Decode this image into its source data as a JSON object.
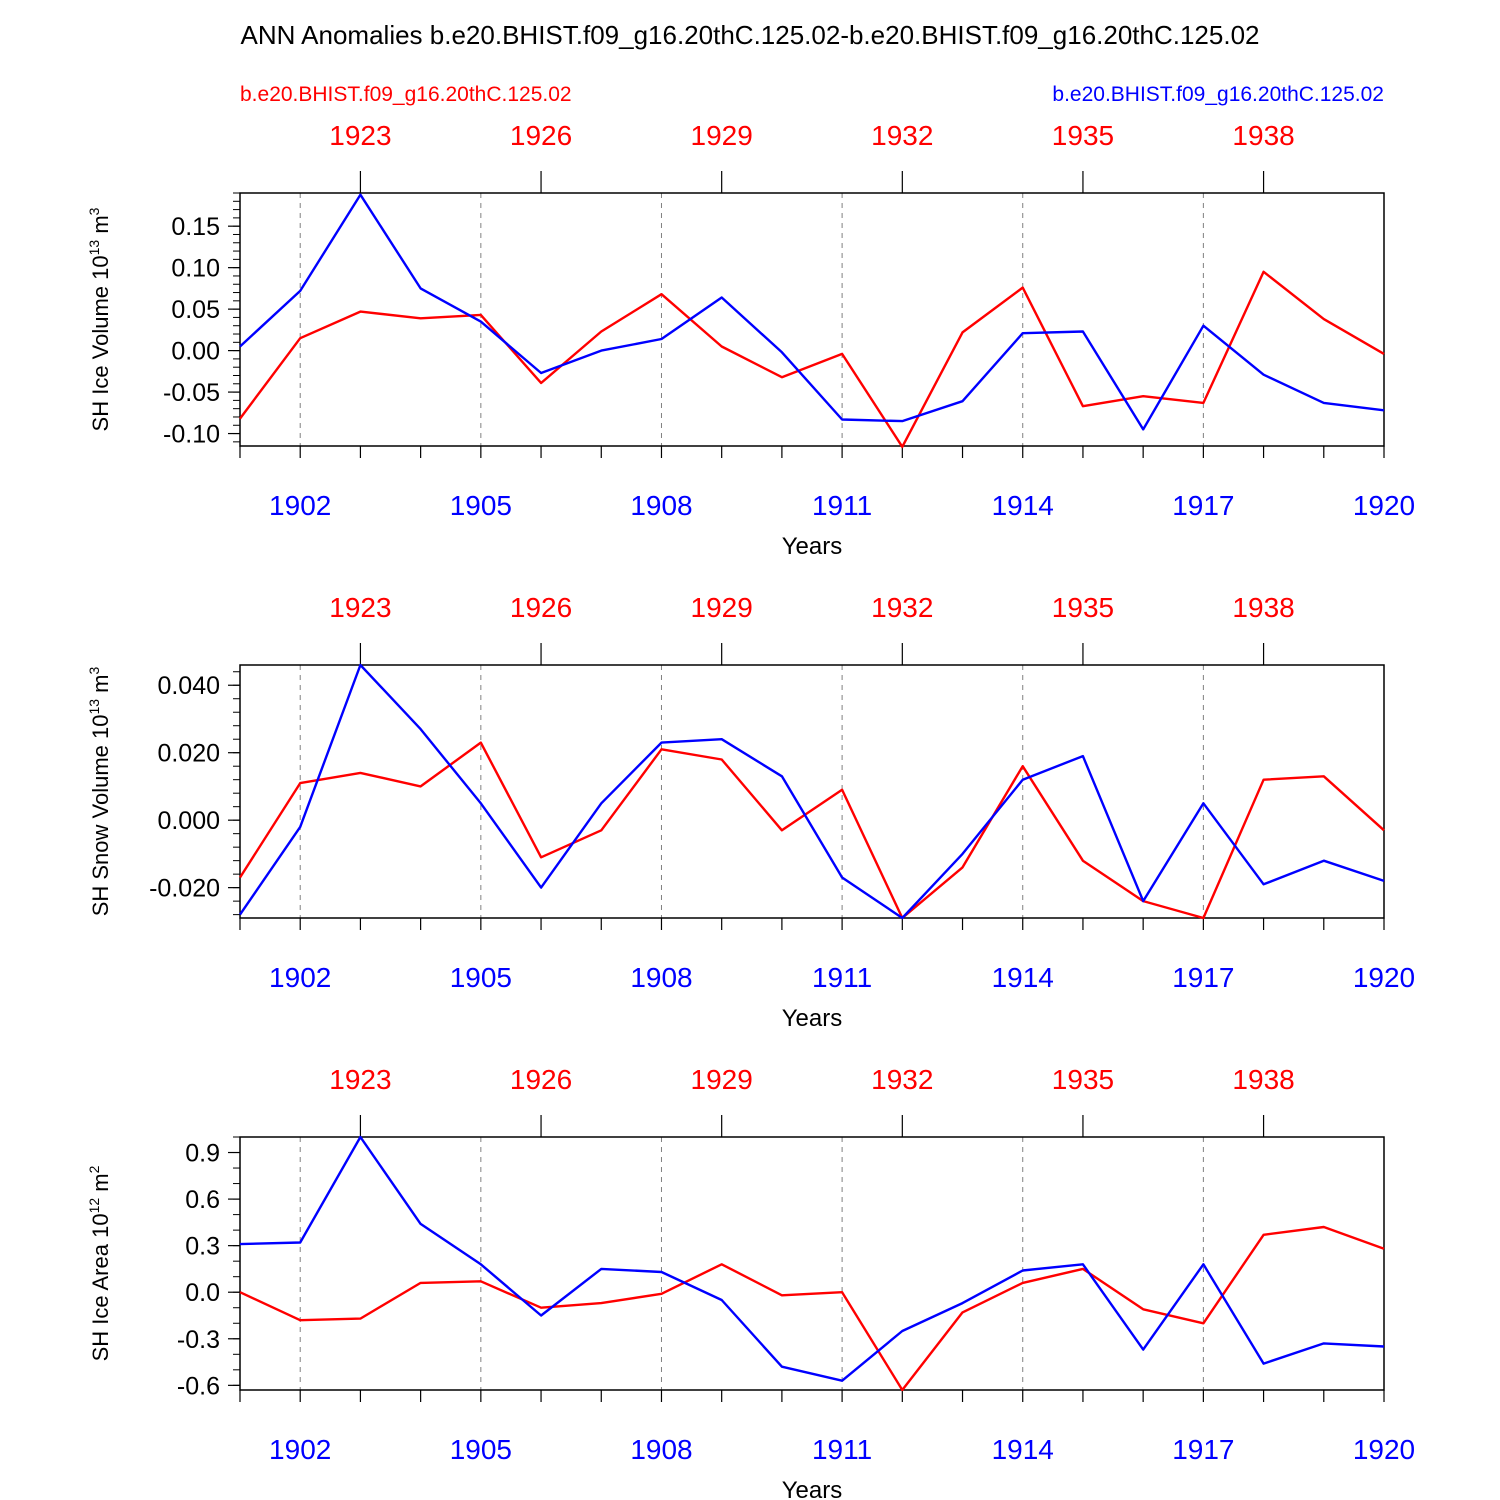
{
  "title": "ANN Anomalies b.e20.BHIST.f09_g16.20thC.125.02-b.e20.BHIST.f09_g16.20thC.125.02",
  "legend": {
    "left_label": "b.e20.BHIST.f09_g16.20thC.125.02",
    "right_label": "b.e20.BHIST.f09_g16.20thC.125.02"
  },
  "colors": {
    "red_series": "#ff0000",
    "blue_series": "#0000ff",
    "axes": "#000000",
    "grid": "#808080"
  },
  "chart_data": [
    {
      "type": "line",
      "ylabel": "SH Ice Volume 10",
      "ylabel_exp": "13",
      "ylabel_unit": " m",
      "ylabel_unit_exp": "3",
      "xlabel": "Years",
      "ylim": [
        -0.115,
        0.19
      ],
      "yticks": [
        -0.1,
        -0.05,
        0.0,
        0.05,
        0.1,
        0.15
      ],
      "ytick_labels": [
        "-0.10",
        "-0.05",
        "0.00",
        "0.05",
        "0.10",
        "0.15"
      ],
      "yminor_step": 0.01,
      "x_bottom": [
        1901,
        1902,
        1903,
        1904,
        1905,
        1906,
        1907,
        1908,
        1909,
        1910,
        1911,
        1912,
        1913,
        1914,
        1915,
        1916,
        1917,
        1918,
        1919,
        1920
      ],
      "bottom_tick_labels": [
        "1902",
        "1905",
        "1908",
        "1911",
        "1914",
        "1917",
        "1920"
      ],
      "top_tick_labels": [
        "1923",
        "1926",
        "1929",
        "1932",
        "1935",
        "1938"
      ],
      "series": [
        {
          "color": "red",
          "values": [
            -0.082,
            0.015,
            0.047,
            0.039,
            0.043,
            -0.039,
            0.023,
            0.068,
            0.005,
            -0.032,
            -0.004,
            -0.116,
            0.022,
            0.076,
            -0.067,
            -0.055,
            -0.063,
            0.095,
            0.038,
            -0.004
          ]
        },
        {
          "color": "blue",
          "values": [
            0.005,
            0.072,
            0.188,
            0.075,
            0.035,
            -0.027,
            0.0,
            0.014,
            0.064,
            -0.002,
            -0.083,
            -0.085,
            -0.061,
            0.021,
            0.023,
            -0.095,
            0.03,
            -0.029,
            -0.063,
            -0.072
          ]
        }
      ]
    },
    {
      "type": "line",
      "ylabel": "SH Snow Volume 10",
      "ylabel_exp": "13",
      "ylabel_unit": " m",
      "ylabel_unit_exp": "3",
      "xlabel": "Years",
      "ylim": [
        -0.029,
        0.046
      ],
      "yticks": [
        -0.02,
        0.0,
        0.02,
        0.04
      ],
      "ytick_labels": [
        "-0.020",
        "0.000",
        "0.020",
        "0.040"
      ],
      "yminor_step": 0.004,
      "x_bottom": [
        1901,
        1902,
        1903,
        1904,
        1905,
        1906,
        1907,
        1908,
        1909,
        1910,
        1911,
        1912,
        1913,
        1914,
        1915,
        1916,
        1917,
        1918,
        1919,
        1920
      ],
      "bottom_tick_labels": [
        "1902",
        "1905",
        "1908",
        "1911",
        "1914",
        "1917",
        "1920"
      ],
      "top_tick_labels": [
        "1923",
        "1926",
        "1929",
        "1932",
        "1935",
        "1938"
      ],
      "series": [
        {
          "color": "red",
          "values": [
            -0.017,
            0.011,
            0.014,
            0.01,
            0.023,
            -0.011,
            -0.003,
            0.021,
            0.018,
            -0.003,
            0.009,
            -0.029,
            -0.014,
            0.016,
            -0.012,
            -0.024,
            -0.029,
            0.012,
            0.013,
            -0.003
          ]
        },
        {
          "color": "blue",
          "values": [
            -0.028,
            -0.002,
            0.046,
            0.027,
            0.005,
            -0.02,
            0.005,
            0.023,
            0.024,
            0.013,
            -0.017,
            -0.029,
            -0.01,
            0.012,
            0.019,
            -0.024,
            0.005,
            -0.019,
            -0.012,
            -0.018
          ]
        }
      ]
    },
    {
      "type": "line",
      "ylabel": "SH Ice Area 10",
      "ylabel_exp": "12",
      "ylabel_unit": " m",
      "ylabel_unit_exp": "2",
      "xlabel": "Years",
      "ylim": [
        -0.63,
        1.0
      ],
      "yticks": [
        -0.6,
        -0.3,
        0.0,
        0.3,
        0.6,
        0.9
      ],
      "ytick_labels": [
        "-0.6",
        "-0.3",
        "0.0",
        "0.3",
        "0.6",
        "0.9"
      ],
      "yminor_step": 0.1,
      "x_bottom": [
        1901,
        1902,
        1903,
        1904,
        1905,
        1906,
        1907,
        1908,
        1909,
        1910,
        1911,
        1912,
        1913,
        1914,
        1915,
        1916,
        1917,
        1918,
        1919,
        1920
      ],
      "bottom_tick_labels": [
        "1902",
        "1905",
        "1908",
        "1911",
        "1914",
        "1917",
        "1920"
      ],
      "top_tick_labels": [
        "1923",
        "1926",
        "1929",
        "1932",
        "1935",
        "1938"
      ],
      "series": [
        {
          "color": "red",
          "values": [
            0.0,
            -0.18,
            -0.17,
            0.06,
            0.07,
            -0.1,
            -0.07,
            -0.01,
            0.18,
            -0.02,
            0.0,
            -0.63,
            -0.13,
            0.06,
            0.15,
            -0.11,
            -0.2,
            0.37,
            0.42,
            0.28
          ]
        },
        {
          "color": "blue",
          "values": [
            0.31,
            0.32,
            1.0,
            0.44,
            0.18,
            -0.15,
            0.15,
            0.13,
            -0.05,
            -0.48,
            -0.57,
            -0.25,
            -0.07,
            0.14,
            0.18,
            -0.37,
            0.18,
            -0.46,
            -0.33,
            -0.35
          ]
        }
      ]
    }
  ]
}
